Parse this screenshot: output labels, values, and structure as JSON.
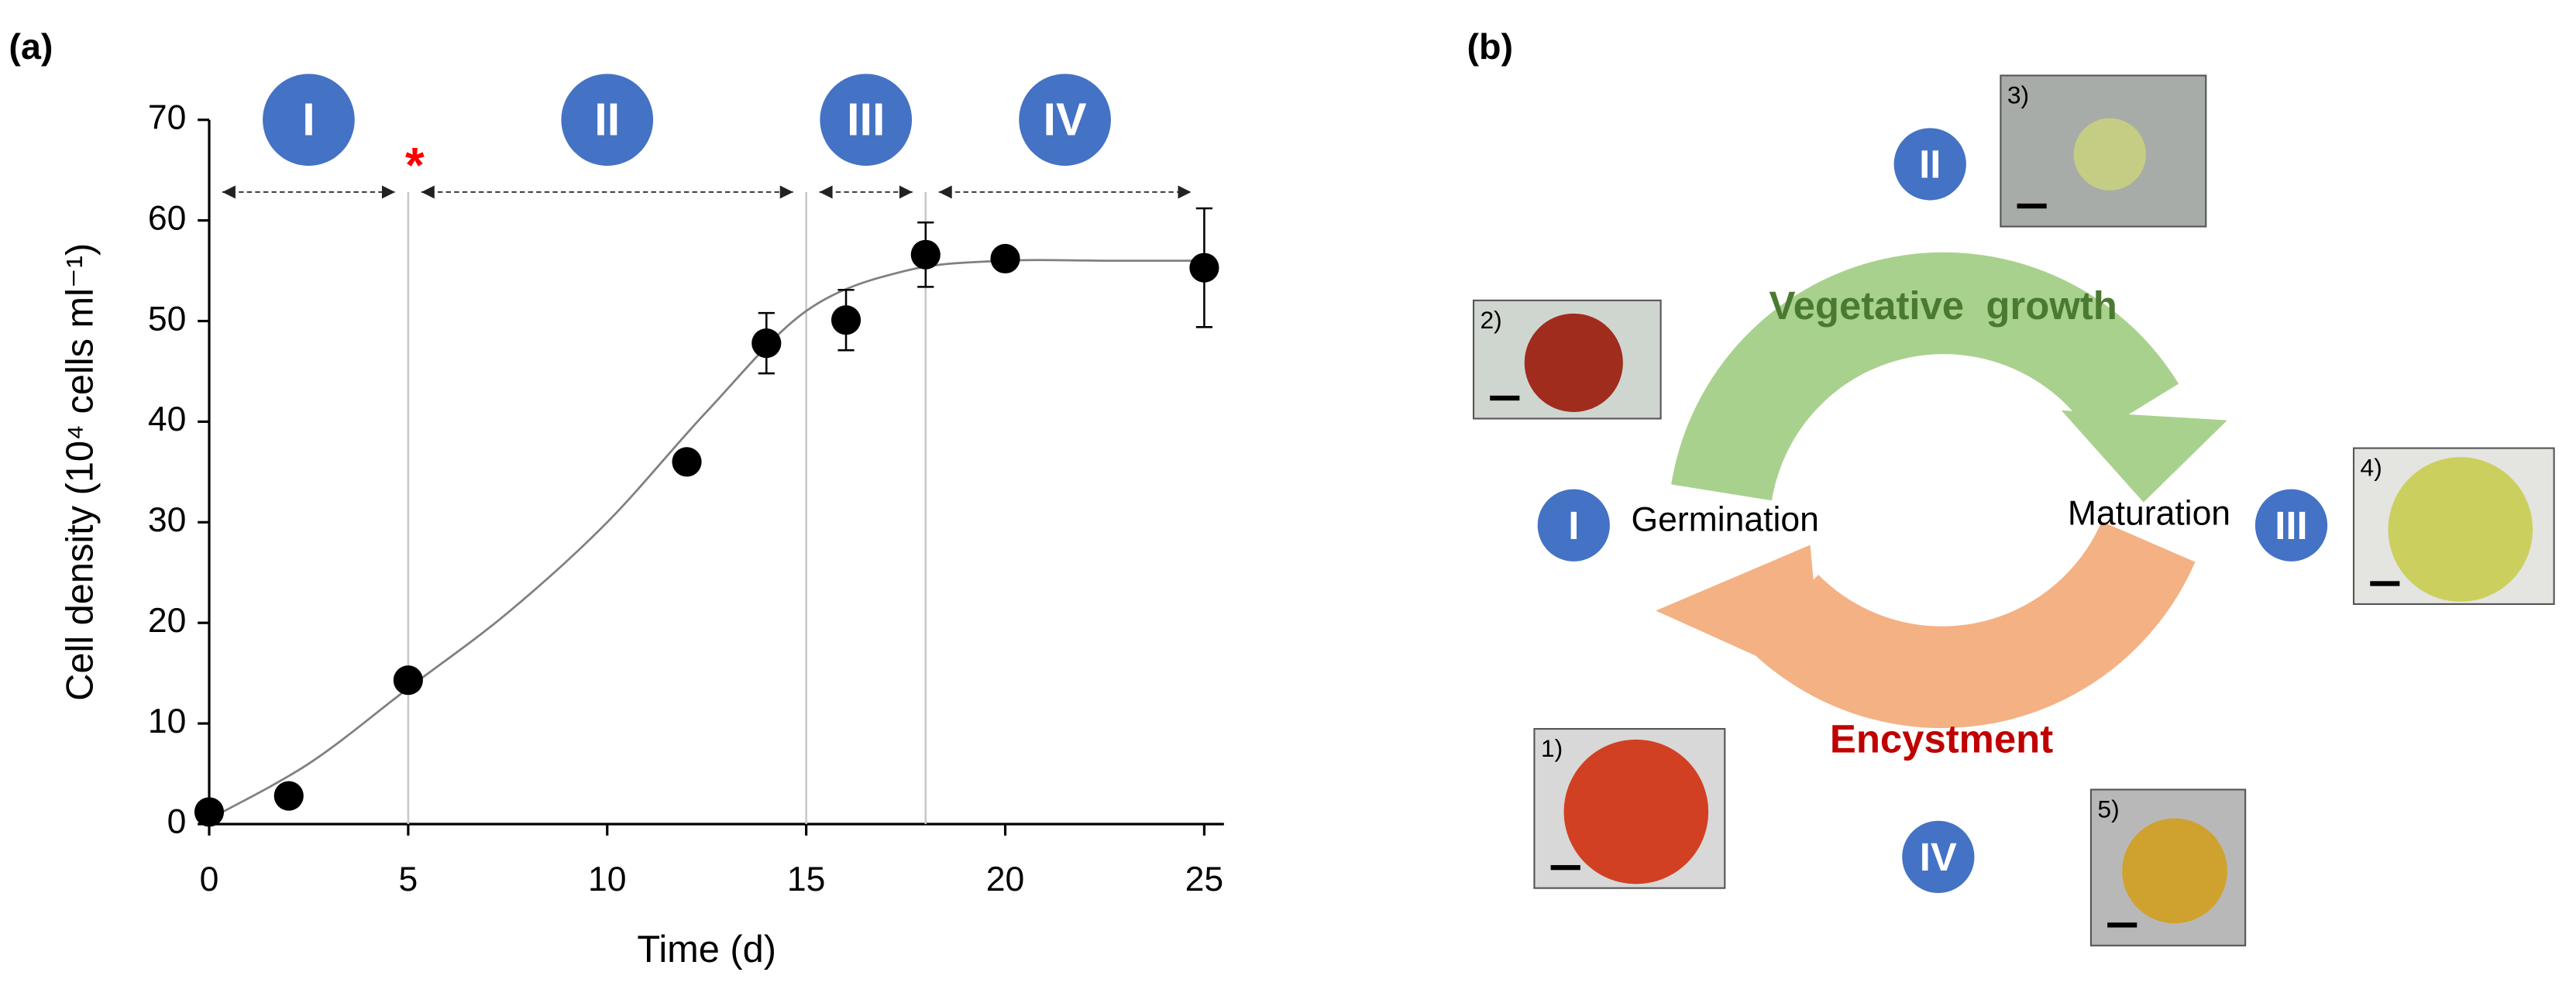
{
  "chart_data": {
    "type": "scatter",
    "panel_label": "(a)",
    "xlabel": "Time (d)",
    "ylabel": "Cell density (10⁴ cells ml⁻¹)",
    "x": [
      0,
      2,
      5,
      12,
      14,
      16,
      18,
      20,
      25
    ],
    "values": [
      1.2,
      2.8,
      14.3,
      36,
      47.8,
      50.1,
      56.6,
      56.2,
      55.3
    ],
    "errors": [
      0,
      0,
      0,
      0,
      3,
      3,
      3.2,
      0,
      5.9
    ],
    "color": "#000000",
    "fit": {
      "x": [
        0,
        2.5,
        5,
        7.5,
        10,
        12.5,
        15,
        17.5,
        20,
        22.5,
        25
      ],
      "values": [
        0.5,
        6,
        13.5,
        21,
        30,
        41,
        51,
        55,
        56,
        56,
        56
      ],
      "color": "#808080"
    },
    "phases": [
      {
        "label": "I",
        "start": 0,
        "end": 5
      },
      {
        "label": "II",
        "start": 5,
        "end": 15
      },
      {
        "label": "III",
        "start": 15,
        "end": 18
      },
      {
        "label": "IV",
        "start": 18,
        "end": 25
      }
    ],
    "phase_color": "#4472c4",
    "annotation": {
      "text": "*",
      "x": 5,
      "color": "#ff0000"
    },
    "xlim": [
      0,
      25
    ],
    "xticks": [
      0,
      5,
      10,
      15,
      20,
      25
    ],
    "ylim": [
      0,
      70
    ],
    "yticks": [
      0,
      10,
      20,
      30,
      40,
      50,
      60,
      70
    ]
  },
  "diagram": {
    "panel_label": "(b)",
    "arrows": [
      "Vegetative  growth",
      "Encystment"
    ],
    "stage_labels": [
      "Germination",
      "Maturation"
    ],
    "phases": [
      "I",
      "II",
      "III",
      "IV"
    ],
    "images": [
      "1)",
      "2)",
      "3)",
      "4)",
      "5)"
    ]
  }
}
